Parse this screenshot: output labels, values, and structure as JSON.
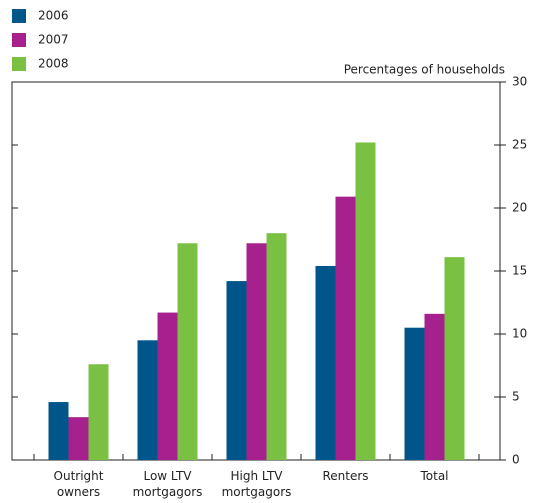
{
  "chart_data": {
    "type": "bar",
    "y_label": "Percentages of households",
    "categories": [
      [
        "Outright",
        "owners"
      ],
      [
        "Low LTV",
        "mortgagors"
      ],
      [
        "High LTV",
        "mortgagors"
      ],
      [
        "Renters"
      ],
      [
        "Total"
      ]
    ],
    "series": [
      {
        "name": "2006",
        "color": "#00568a",
        "values": [
          4.6,
          9.5,
          14.2,
          15.4,
          10.5
        ]
      },
      {
        "name": "2007",
        "color": "#a6218e",
        "values": [
          3.4,
          11.7,
          17.2,
          20.9,
          11.6
        ]
      },
      {
        "name": "2008",
        "color": "#7ac143",
        "values": [
          7.6,
          17.2,
          18.0,
          25.2,
          16.1
        ]
      }
    ],
    "ylim": [
      0,
      30
    ],
    "yticks": [
      0,
      5,
      10,
      15,
      20,
      25,
      30
    ],
    "y_axis_side": "right",
    "grid": false
  }
}
